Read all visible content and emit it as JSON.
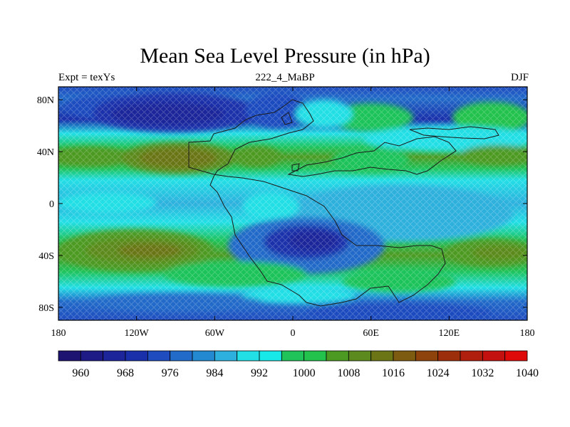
{
  "figure": {
    "title": "Mean Sea Level Pressure (in hPa)",
    "left_string": "Expt = texYs",
    "center_string": "222_4_MaBP",
    "right_string": "DJF"
  },
  "axes": {
    "lat_ticks": [
      "80N",
      "40N",
      "0",
      "40S",
      "80S"
    ],
    "lon_ticks": [
      "180",
      "120W",
      "60W",
      "0",
      "60E",
      "120E",
      "180"
    ]
  },
  "colorbar": {
    "colors": [
      "#1c1470",
      "#1f1b86",
      "#1d259a",
      "#1a30ab",
      "#1f4cbf",
      "#226bc9",
      "#238ad2",
      "#2db0dd",
      "#22dfe6",
      "#17e8e8",
      "#1fc35a",
      "#22c24d",
      "#4d9a22",
      "#5c8a1e",
      "#6b7516",
      "#7d5b10",
      "#8e430c",
      "#9c2e0c",
      "#b01e0e",
      "#c3110f",
      "#de0a0a"
    ],
    "labels": [
      "960",
      "968",
      "976",
      "984",
      "992",
      "1000",
      "1008",
      "1016",
      "1024",
      "1032",
      "1040"
    ]
  },
  "chart_data": {
    "type": "heatmap",
    "title": "Mean Sea Level Pressure (in hPa)",
    "variable": "Mean Sea Level Pressure",
    "units": "hPa",
    "experiment": "Expt = texYs",
    "period": "222_4_MaBP",
    "season": "DJF",
    "lon_range": [
      -180,
      180
    ],
    "lat_range": [
      -90,
      90
    ],
    "zones": [
      {
        "lat": 80,
        "lon": -150,
        "value": 1000
      },
      {
        "lat": 67,
        "lon": -105,
        "value": 964
      },
      {
        "lat": 67,
        "lon": -30,
        "value": 976
      },
      {
        "lat": 70,
        "lon": 60,
        "value": 1008
      },
      {
        "lat": 65,
        "lon": 150,
        "value": 1004
      },
      {
        "lat": 37,
        "lon": -100,
        "value": 1024
      },
      {
        "lat": 37,
        "lon": -160,
        "value": 1020
      },
      {
        "lat": 35,
        "lon": 60,
        "value": 1008
      },
      {
        "lat": 37,
        "lon": 150,
        "value": 1012
      },
      {
        "lat": 0,
        "lon": -120,
        "value": 1000
      },
      {
        "lat": 0,
        "lon": 60,
        "value": 996
      },
      {
        "lat": -28,
        "lon": 10,
        "value": 972
      },
      {
        "lat": -40,
        "lon": -120,
        "value": 1024
      },
      {
        "lat": -40,
        "lon": 155,
        "value": 1020
      },
      {
        "lat": -55,
        "lon": -60,
        "value": 1008
      },
      {
        "lat": -75,
        "lon": 0,
        "value": 984
      },
      {
        "lat": -82,
        "lon": 60,
        "value": 980
      }
    ]
  }
}
